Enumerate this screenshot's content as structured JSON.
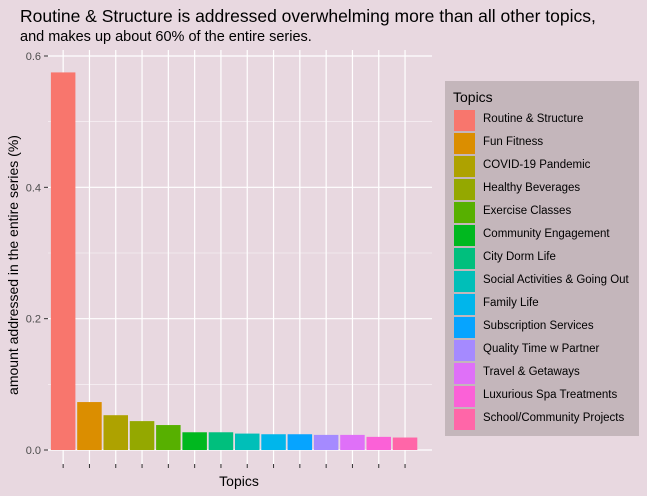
{
  "header": {
    "title": "Routine & Structure is addressed overwhelming more than all other topics,",
    "subtitle": "and makes up about 60% of the entire series."
  },
  "chart_data": {
    "type": "bar",
    "title": "Routine & Structure is addressed overwhelming more than all other topics,",
    "subtitle": "and makes up about 60% of the entire series.",
    "xlabel": "Topics",
    "ylabel": "amount addressed in the entire series (%)",
    "ylim": [
      0,
      0.6
    ],
    "yticks": [
      "0.0",
      "0.2",
      "0.4",
      "0.6"
    ],
    "grid": true,
    "legend_placement": "right",
    "legend_title": "Topics",
    "categories": [
      "Routine & Structure",
      "Fun Fitness",
      "COVID-19 Pandemic",
      "Healthy Beverages",
      "Exercise Classes",
      "Community Engagement",
      "City Dorm Life",
      "Social Activities & Going Out",
      "Family Life",
      "Subscription Services",
      "Quality Time w Partner",
      "Travel & Getaways",
      "Luxurious Spa Treatments",
      "School/Community Projects"
    ],
    "values": [
      0.575,
      0.073,
      0.053,
      0.044,
      0.038,
      0.027,
      0.027,
      0.025,
      0.024,
      0.024,
      0.023,
      0.023,
      0.02,
      0.019
    ],
    "colors": [
      "#F8766D",
      "#DB8E00",
      "#AEA200",
      "#94A800",
      "#57B000",
      "#00B81F",
      "#00BF7D",
      "#00BFB8",
      "#00B6EB",
      "#06A4FF",
      "#A58AFF",
      "#DF70F8",
      "#FB61D7",
      "#FF66A8"
    ]
  }
}
